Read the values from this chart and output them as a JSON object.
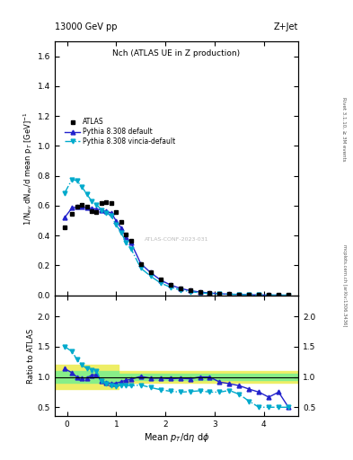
{
  "title_top": "13000 GeV pp",
  "title_right": "Z+Jet",
  "plot_title": "Nch (ATLAS UE in Z production)",
  "ylabel_main": "1/N$_{ev}$ dN$_{ev}$/d mean p$_T$ [GeV]$^{-1}$",
  "ylabel_ratio": "Ratio to ATLAS",
  "xlabel": "Mean $p_T$/d$\\eta$ d$\\phi$",
  "right_label": "Rivet 3.1.10, ≥ 3M events",
  "watermark": "ATLAS-CONF-2023-031",
  "mcplots": "mcplots.cern.ch [arXiv:1306.3436]",
  "atlas_x_main": [
    -0.05,
    0.1,
    0.2,
    0.3,
    0.4,
    0.5,
    0.6,
    0.7,
    0.8,
    0.9,
    1.0,
    1.1,
    1.2,
    1.3,
    1.5,
    1.7,
    1.9,
    2.1,
    2.3,
    2.5,
    2.7,
    2.9,
    3.1,
    3.3,
    3.5,
    3.7,
    3.9,
    4.1,
    4.3,
    4.5
  ],
  "atlas_y_main": [
    0.455,
    0.545,
    0.595,
    0.605,
    0.595,
    0.565,
    0.555,
    0.615,
    0.625,
    0.615,
    0.555,
    0.49,
    0.41,
    0.365,
    0.21,
    0.155,
    0.105,
    0.072,
    0.048,
    0.033,
    0.022,
    0.016,
    0.012,
    0.009,
    0.007,
    0.005,
    0.004,
    0.003,
    0.002,
    0.002
  ],
  "pythia_default_x": [
    -0.05,
    0.1,
    0.2,
    0.3,
    0.4,
    0.5,
    0.6,
    0.7,
    0.8,
    0.9,
    1.0,
    1.1,
    1.2,
    1.3,
    1.5,
    1.7,
    1.9,
    2.1,
    2.3,
    2.5,
    2.7,
    2.9,
    3.1,
    3.3,
    3.5,
    3.7,
    3.9,
    4.1,
    4.3,
    4.5
  ],
  "pythia_default_y": [
    0.52,
    0.585,
    0.592,
    0.592,
    0.587,
    0.582,
    0.578,
    0.572,
    0.562,
    0.552,
    0.498,
    0.452,
    0.388,
    0.352,
    0.212,
    0.152,
    0.103,
    0.07,
    0.047,
    0.032,
    0.022,
    0.016,
    0.011,
    0.008,
    0.006,
    0.004,
    0.003,
    0.002,
    0.0015,
    0.001
  ],
  "pythia_vincia_x": [
    -0.05,
    0.1,
    0.2,
    0.3,
    0.4,
    0.5,
    0.6,
    0.7,
    0.8,
    0.9,
    1.0,
    1.1,
    1.2,
    1.3,
    1.5,
    1.7,
    1.9,
    2.1,
    2.3,
    2.5,
    2.7,
    2.9,
    3.1,
    3.3,
    3.5,
    3.7,
    3.9,
    4.1,
    4.3,
    4.5
  ],
  "pythia_vincia_y": [
    0.685,
    0.775,
    0.768,
    0.728,
    0.678,
    0.632,
    0.608,
    0.572,
    0.552,
    0.532,
    0.472,
    0.422,
    0.352,
    0.312,
    0.182,
    0.128,
    0.083,
    0.055,
    0.036,
    0.025,
    0.017,
    0.012,
    0.009,
    0.007,
    0.005,
    0.003,
    0.002,
    0.0015,
    0.001,
    0.001
  ],
  "ratio_pythia_default_x": [
    -0.05,
    0.1,
    0.2,
    0.3,
    0.4,
    0.5,
    0.6,
    0.7,
    0.8,
    0.9,
    1.0,
    1.1,
    1.2,
    1.3,
    1.5,
    1.7,
    1.9,
    2.1,
    2.3,
    2.5,
    2.7,
    2.9,
    3.1,
    3.3,
    3.5,
    3.7,
    3.9,
    4.1,
    4.3,
    4.5
  ],
  "ratio_pythia_default_y": [
    1.14,
    1.07,
    1.0,
    0.98,
    0.986,
    1.03,
    1.04,
    0.93,
    0.9,
    0.897,
    0.897,
    0.922,
    0.946,
    0.963,
    1.01,
    0.98,
    0.981,
    0.972,
    0.979,
    0.97,
    1.0,
    1.0,
    0.917,
    0.889,
    0.857,
    0.8,
    0.75,
    0.667,
    0.75,
    0.5
  ],
  "ratio_pythia_vincia_x": [
    -0.05,
    0.1,
    0.2,
    0.3,
    0.4,
    0.5,
    0.6,
    0.7,
    0.8,
    0.9,
    1.0,
    1.1,
    1.2,
    1.3,
    1.5,
    1.7,
    1.9,
    2.1,
    2.3,
    2.5,
    2.7,
    2.9,
    3.1,
    3.3,
    3.5,
    3.7,
    3.9,
    4.1,
    4.3,
    4.5
  ],
  "ratio_pythia_vincia_y": [
    1.505,
    1.422,
    1.292,
    1.203,
    1.139,
    1.118,
    1.095,
    0.93,
    0.883,
    0.865,
    0.85,
    0.862,
    0.859,
    0.855,
    0.867,
    0.826,
    0.79,
    0.764,
    0.75,
    0.758,
    0.773,
    0.75,
    0.75,
    0.778,
    0.714,
    0.6,
    0.5,
    0.5,
    0.5,
    0.5
  ],
  "green_band_x": [
    -0.25,
    0.55,
    1.05,
    1.55,
    2.05,
    2.55,
    3.05,
    3.55,
    4.05,
    4.7
  ],
  "green_band_lo": [
    0.9,
    0.9,
    0.95,
    0.95,
    0.95,
    0.95,
    0.95,
    0.95,
    0.95,
    0.95
  ],
  "green_band_hi": [
    1.1,
    1.1,
    1.05,
    1.05,
    1.05,
    1.05,
    1.05,
    1.05,
    1.05,
    1.05
  ],
  "yellow_band_x": [
    -0.25,
    0.55,
    1.05,
    1.55,
    2.05,
    2.55,
    3.05,
    3.55,
    4.05,
    4.7
  ],
  "yellow_band_lo": [
    0.8,
    0.8,
    0.9,
    0.9,
    0.9,
    0.9,
    0.9,
    0.9,
    0.9,
    0.9
  ],
  "yellow_band_hi": [
    1.2,
    1.2,
    1.1,
    1.1,
    1.1,
    1.1,
    1.1,
    1.1,
    1.1,
    1.1
  ],
  "main_ylim": [
    0,
    1.7
  ],
  "main_yticks": [
    0,
    0.2,
    0.4,
    0.6,
    0.8,
    1.0,
    1.2,
    1.4,
    1.6
  ],
  "ratio_ylim": [
    0.35,
    2.35
  ],
  "ratio_yticks": [
    0.5,
    1.0,
    1.5,
    2.0
  ],
  "xlim": [
    -0.25,
    4.7
  ],
  "xticks": [
    0,
    1,
    2,
    3,
    4
  ],
  "color_atlas": "#000000",
  "color_pythia_default": "#2222cc",
  "color_pythia_vincia": "#00aacc",
  "color_green": "#88ee88",
  "color_yellow": "#eeee66"
}
